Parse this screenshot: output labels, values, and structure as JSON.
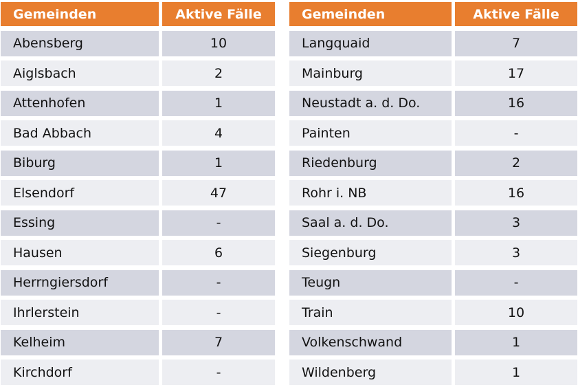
{
  "colors": {
    "header_orange": "#E87E2F",
    "row_dark": "#D4D6E0",
    "row_light": "#EDEEF2",
    "header_text": "#FFFFFF",
    "cell_text": "#121212",
    "gutter_white": "#FFFFFF"
  },
  "chart_data": {
    "type": "table",
    "columns": [
      "Gemeinden",
      "Aktive Fälle",
      "Gemeinden",
      "Aktive Fälle"
    ],
    "rows": [
      [
        "Abensberg",
        "10",
        "Langquaid",
        "7"
      ],
      [
        "Aiglsbach",
        "2",
        "Mainburg",
        "17"
      ],
      [
        "Attenhofen",
        "1",
        "Neustadt a. d. Do.",
        "16"
      ],
      [
        "Bad Abbach",
        "4",
        "Painten",
        "-"
      ],
      [
        "Biburg",
        "1",
        "Riedenburg",
        "2"
      ],
      [
        "Elsendorf",
        "47",
        "Rohr i. NB",
        "16"
      ],
      [
        "Essing",
        "-",
        "Saal a. d. Do.",
        "3"
      ],
      [
        "Hausen",
        "6",
        "Siegenburg",
        "3"
      ],
      [
        "Herrngiersdorf",
        "-",
        "Teugn",
        "-"
      ],
      [
        "Ihrlerstein",
        "-",
        "Train",
        "10"
      ],
      [
        "Kelheim",
        "7",
        "Volkenschwand",
        "1"
      ],
      [
        "Kirchdorf",
        "-",
        "Wildenberg",
        "1"
      ]
    ],
    "layout": {
      "panels": 2,
      "rows_per_panel": 12,
      "value_alignment": "center",
      "name_alignment": "left"
    }
  }
}
